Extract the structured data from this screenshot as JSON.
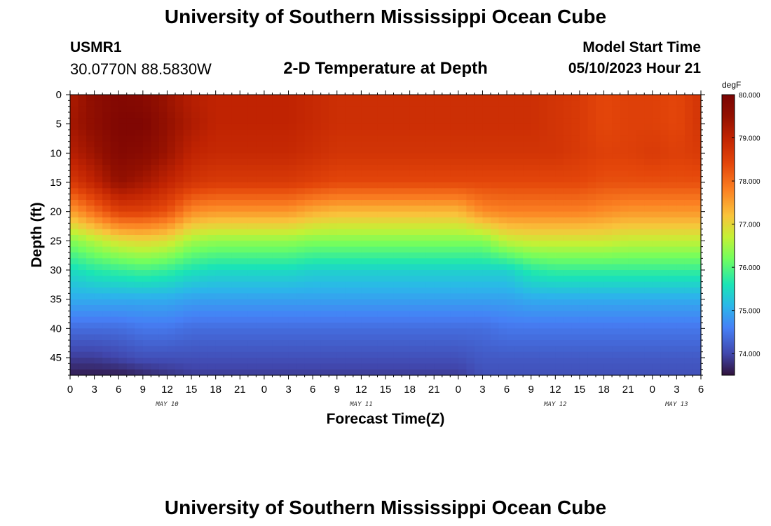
{
  "header": {
    "main_title": "University of Southern Mississippi Ocean Cube",
    "station_id": "USMR1",
    "coordinates": "30.0770N  88.5830W",
    "plot_title": "2-D Temperature at Depth",
    "start_label": "Model Start Time",
    "start_value": "05/10/2023 Hour 21"
  },
  "footer": {
    "main_title": "University of Southern Mississippi Ocean Cube"
  },
  "chart_data": {
    "type": "heatmap",
    "title": "2-D Temperature at Depth",
    "xlabel": "Forecast Time(Z)",
    "ylabel": "Depth (ft)",
    "x_hours": [
      0,
      3,
      6,
      9,
      12,
      15,
      18,
      21,
      24,
      27,
      30,
      33,
      36,
      39,
      42,
      45,
      48,
      51,
      54,
      57,
      60,
      63,
      66,
      69,
      72,
      75,
      78
    ],
    "x_tick_labels": [
      "0",
      "3",
      "6",
      "9",
      "12",
      "15",
      "18",
      "21",
      "0",
      "3",
      "6",
      "9",
      "12",
      "15",
      "18",
      "21",
      "0",
      "3",
      "6",
      "9",
      "12",
      "15",
      "18",
      "21",
      "0",
      "3",
      "6"
    ],
    "day_labels": [
      {
        "hour": 12,
        "label": "MAY 10"
      },
      {
        "hour": 36,
        "label": "MAY 11"
      },
      {
        "hour": 60,
        "label": "MAY 12"
      },
      {
        "hour": 75,
        "label": "MAY 13"
      }
    ],
    "depth_ticks": [
      0,
      5,
      10,
      15,
      20,
      25,
      30,
      35,
      40,
      45
    ],
    "depth_range": [
      0,
      48
    ],
    "depths_ft": [
      0,
      5,
      10,
      15,
      20,
      25,
      30,
      35,
      40,
      45,
      48
    ],
    "temperature_degF": [
      [
        79.2,
        79.3,
        79.1,
        78.6,
        77.5,
        76.3,
        75.5,
        75.0,
        74.4,
        73.9,
        73.6
      ],
      [
        79.6,
        79.6,
        79.4,
        79.0,
        78.0,
        76.6,
        75.7,
        75.0,
        74.4,
        73.9,
        73.6
      ],
      [
        79.8,
        79.9,
        79.8,
        79.5,
        78.5,
        76.9,
        75.8,
        75.0,
        74.4,
        74.0,
        73.6
      ],
      [
        79.7,
        79.9,
        79.7,
        79.3,
        78.5,
        77.0,
        75.9,
        75.0,
        74.5,
        74.1,
        73.7
      ],
      [
        79.4,
        79.5,
        79.4,
        79.0,
        78.3,
        76.9,
        75.8,
        75.0,
        74.5,
        74.1,
        73.8
      ],
      [
        79.1,
        79.2,
        79.0,
        78.7,
        77.7,
        76.5,
        75.6,
        74.9,
        74.4,
        74.1,
        73.9
      ],
      [
        79.0,
        79.0,
        78.9,
        78.6,
        77.6,
        76.4,
        75.5,
        74.9,
        74.4,
        74.1,
        73.9
      ],
      [
        79.0,
        79.0,
        78.9,
        78.6,
        77.6,
        76.4,
        75.5,
        74.9,
        74.4,
        74.1,
        73.9
      ],
      [
        79.0,
        79.0,
        78.9,
        78.6,
        77.6,
        76.4,
        75.5,
        74.9,
        74.4,
        74.1,
        73.9
      ],
      [
        79.0,
        79.0,
        78.9,
        78.6,
        77.6,
        76.4,
        75.5,
        74.9,
        74.4,
        74.1,
        73.9
      ],
      [
        78.9,
        78.9,
        78.8,
        78.5,
        77.4,
        76.3,
        75.4,
        74.9,
        74.4,
        74.1,
        73.9
      ],
      [
        78.8,
        78.8,
        78.7,
        78.4,
        77.3,
        76.3,
        75.4,
        74.9,
        74.4,
        74.1,
        73.9
      ],
      [
        78.8,
        78.8,
        78.7,
        78.4,
        77.3,
        76.3,
        75.4,
        74.9,
        74.4,
        74.1,
        73.9
      ],
      [
        78.8,
        78.8,
        78.7,
        78.4,
        77.3,
        76.3,
        75.4,
        74.9,
        74.4,
        74.1,
        73.9
      ],
      [
        78.8,
        78.8,
        78.7,
        78.4,
        77.3,
        76.3,
        75.4,
        74.9,
        74.4,
        74.1,
        73.9
      ],
      [
        78.8,
        78.8,
        78.7,
        78.4,
        77.3,
        76.3,
        75.4,
        74.9,
        74.4,
        74.1,
        73.9
      ],
      [
        78.8,
        78.8,
        78.7,
        78.4,
        77.3,
        76.3,
        75.4,
        74.9,
        74.4,
        74.1,
        73.9
      ],
      [
        78.8,
        78.8,
        78.7,
        78.4,
        77.7,
        76.3,
        75.4,
        74.9,
        74.4,
        74.2,
        74.1
      ],
      [
        78.8,
        78.8,
        78.7,
        78.4,
        77.8,
        76.7,
        75.4,
        74.9,
        74.5,
        74.2,
        74.1
      ],
      [
        78.8,
        78.8,
        78.7,
        78.4,
        77.8,
        76.8,
        75.7,
        75.0,
        74.5,
        74.2,
        74.1
      ],
      [
        78.7,
        78.7,
        78.7,
        78.4,
        77.8,
        76.8,
        75.8,
        75.0,
        74.5,
        74.2,
        74.1
      ],
      [
        78.6,
        78.6,
        78.6,
        78.4,
        77.8,
        76.8,
        75.8,
        75.0,
        74.5,
        74.2,
        74.1
      ],
      [
        78.4,
        78.4,
        78.5,
        78.3,
        77.7,
        76.8,
        75.8,
        75.0,
        74.5,
        74.2,
        74.1
      ],
      [
        78.5,
        78.5,
        78.5,
        78.3,
        77.6,
        76.7,
        75.8,
        75.0,
        74.5,
        74.2,
        74.1
      ],
      [
        78.5,
        78.5,
        78.6,
        78.3,
        77.6,
        76.7,
        75.8,
        75.0,
        74.5,
        74.2,
        74.1
      ],
      [
        78.4,
        78.4,
        78.5,
        78.3,
        77.6,
        76.7,
        75.8,
        75.0,
        74.5,
        74.2,
        74.1
      ],
      [
        78.7,
        78.7,
        78.6,
        78.3,
        77.6,
        76.7,
        75.8,
        75.0,
        74.5,
        74.2,
        74.1
      ]
    ],
    "colorbar": {
      "unit": "degF",
      "min": 73.5,
      "max": 80.0,
      "tick_values": [
        74.0,
        75.0,
        76.0,
        77.0,
        78.0,
        79.0,
        80.0
      ],
      "tick_labels": [
        "74.000",
        "75.000",
        "76.000",
        "77.000",
        "78.000",
        "79.000",
        "80.000"
      ]
    },
    "colormap_stops": [
      {
        "v": 73.5,
        "c": "#30123b"
      },
      {
        "v": 74.0,
        "c": "#4147ad"
      },
      {
        "v": 74.6,
        "c": "#4680f6"
      },
      {
        "v": 75.1,
        "c": "#2bb6ea"
      },
      {
        "v": 75.6,
        "c": "#1ae4b6"
      },
      {
        "v": 76.2,
        "c": "#72fe5e"
      },
      {
        "v": 76.7,
        "c": "#c4f135"
      },
      {
        "v": 77.2,
        "c": "#f9c33b"
      },
      {
        "v": 77.8,
        "c": "#fb8022"
      },
      {
        "v": 78.4,
        "c": "#e4460a"
      },
      {
        "v": 79.0,
        "c": "#c02302"
      },
      {
        "v": 79.5,
        "c": "#931001"
      },
      {
        "v": 80.0,
        "c": "#7a0403"
      }
    ]
  }
}
